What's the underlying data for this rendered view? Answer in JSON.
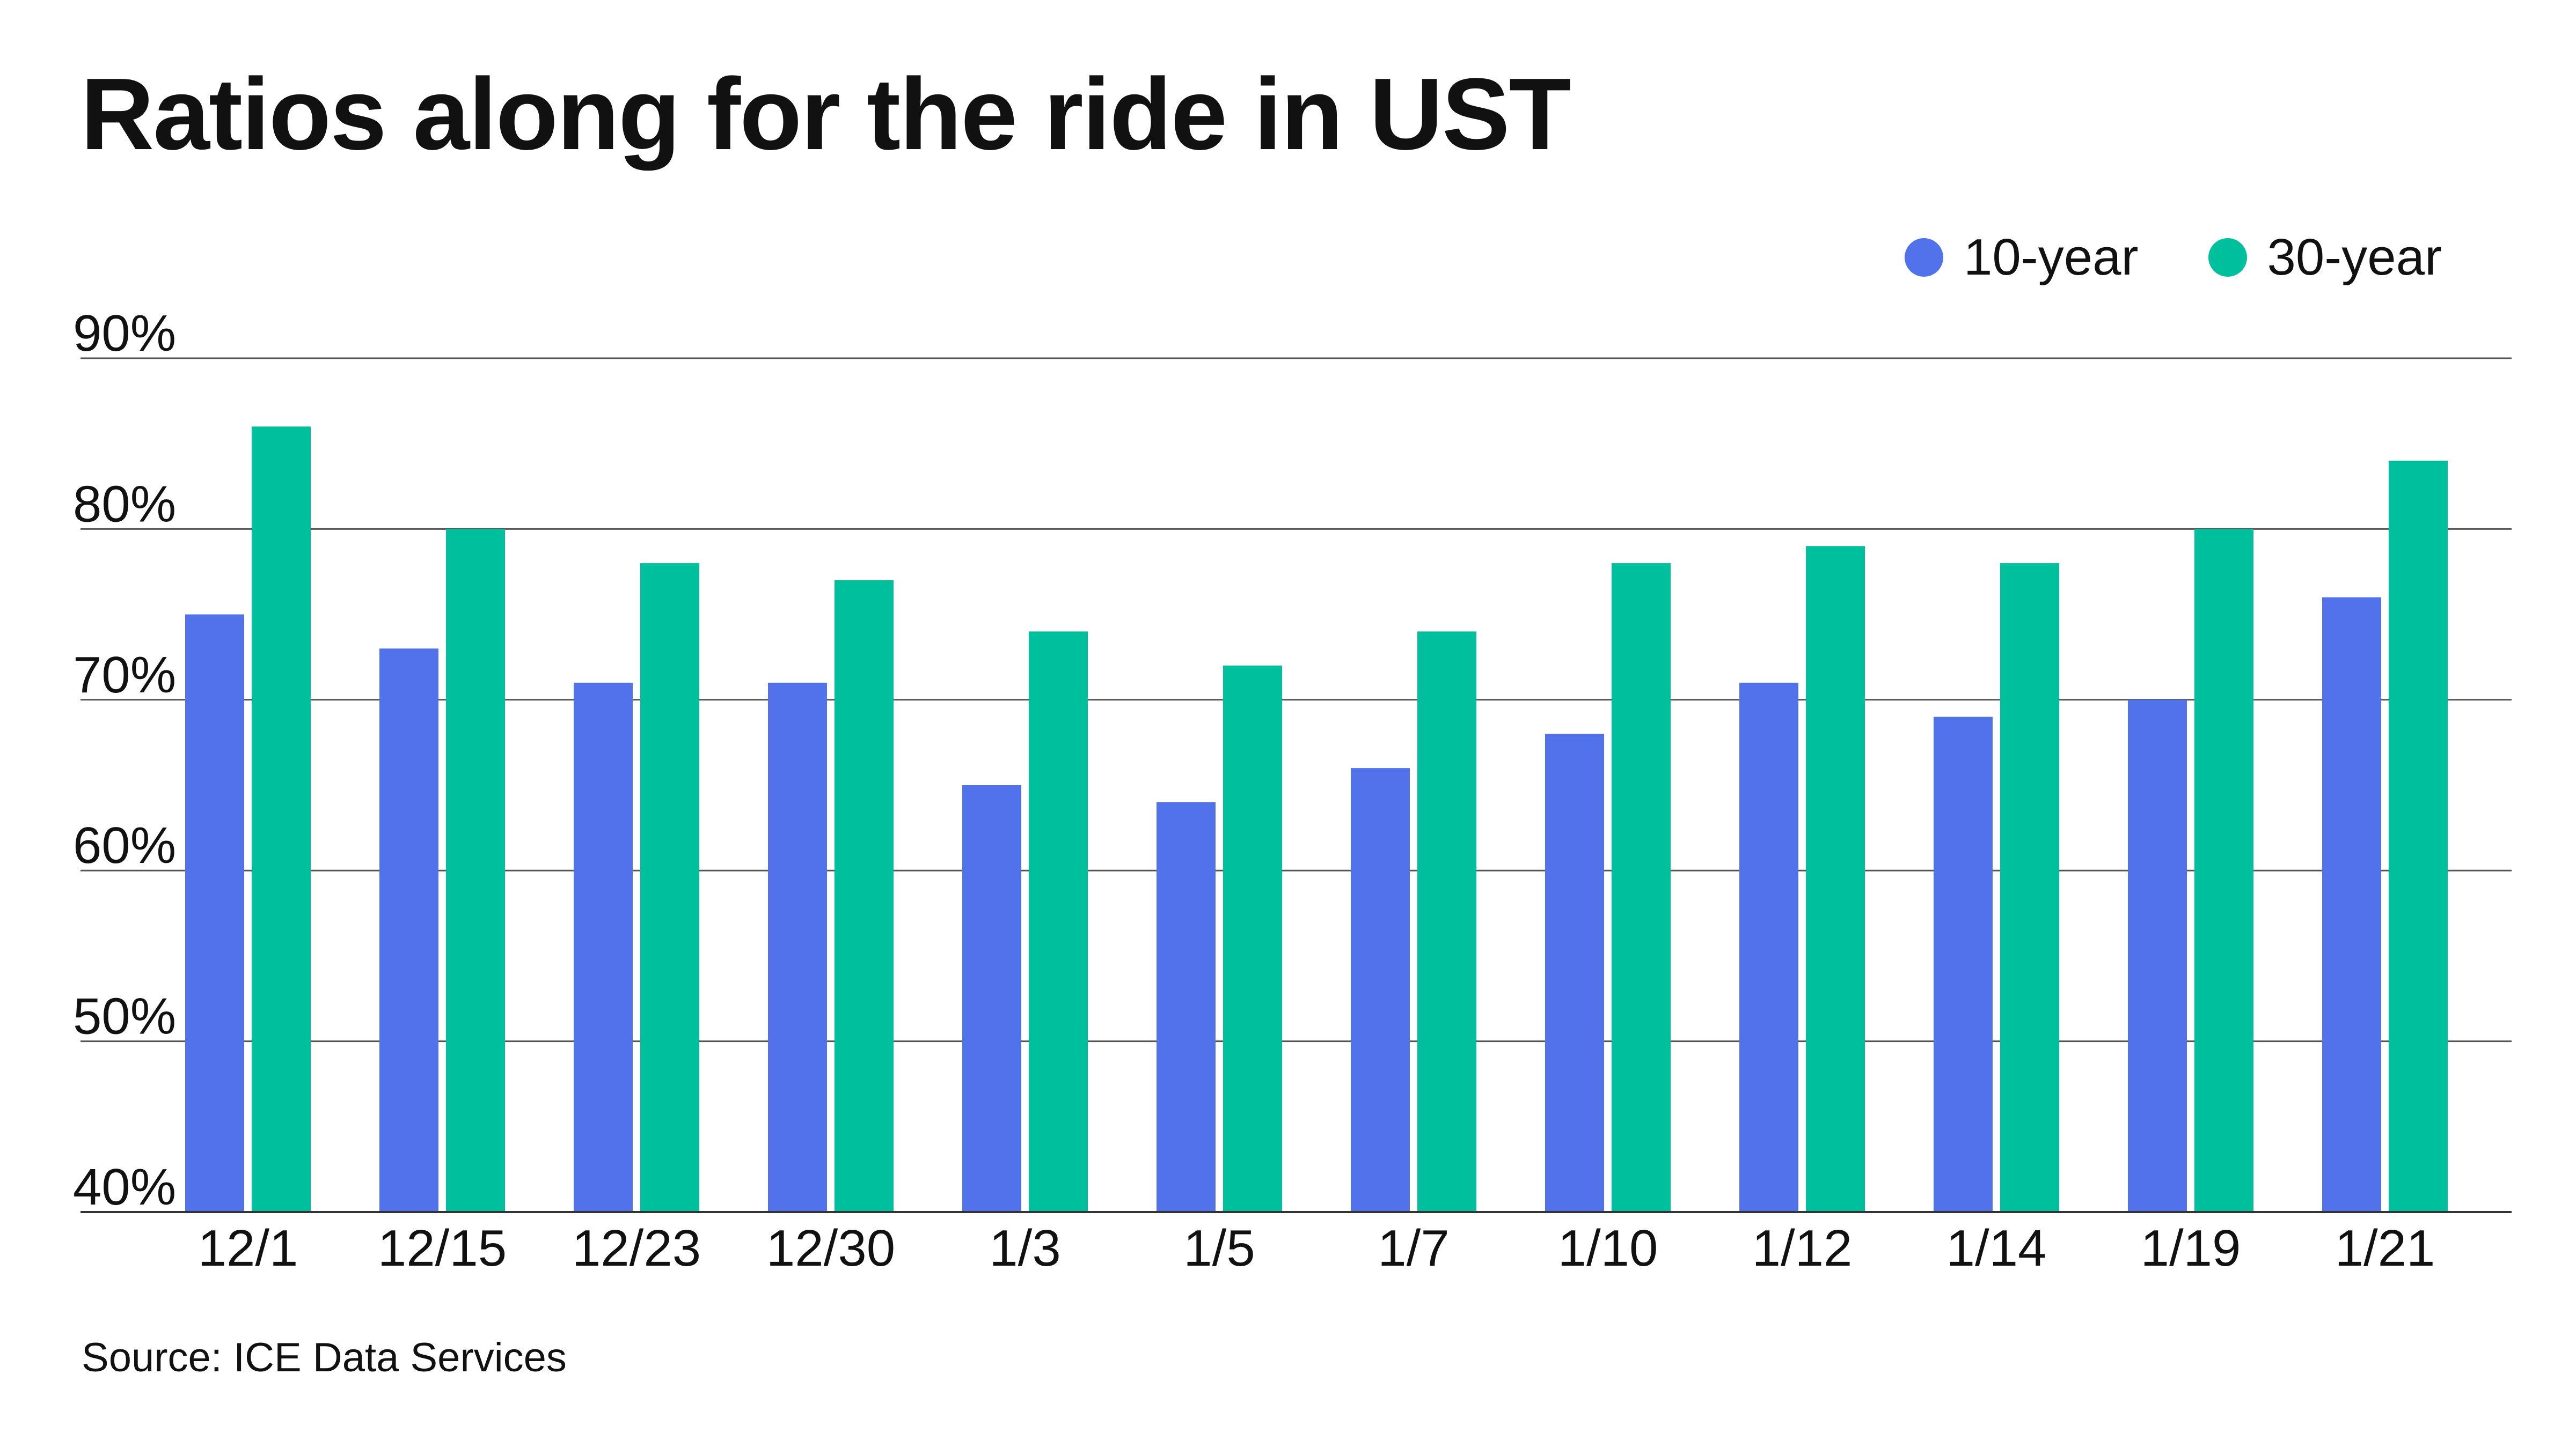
{
  "chart_data": {
    "type": "bar",
    "title": "Ratios along for the ride in UST",
    "source": "Source: ICE Data Services",
    "categories": [
      "12/1",
      "12/15",
      "12/23",
      "12/30",
      "1/3",
      "1/5",
      "1/7",
      "1/10",
      "1/12",
      "1/14",
      "1/19",
      "1/21"
    ],
    "series": [
      {
        "name": "10-year",
        "color": "#5272ec",
        "values": [
          75,
          73,
          71,
          71,
          65,
          64,
          66,
          68,
          71,
          69,
          70,
          76
        ]
      },
      {
        "name": "30-year",
        "color": "#00bf9c",
        "values": [
          86,
          80,
          78,
          77,
          74,
          72,
          74,
          78,
          79,
          78,
          80,
          84
        ]
      }
    ],
    "ylim": [
      40,
      90
    ],
    "yticks": [
      40,
      50,
      60,
      70,
      80,
      90
    ],
    "ytick_format": "{v}%",
    "grid": true,
    "legend_position": "top-right"
  }
}
